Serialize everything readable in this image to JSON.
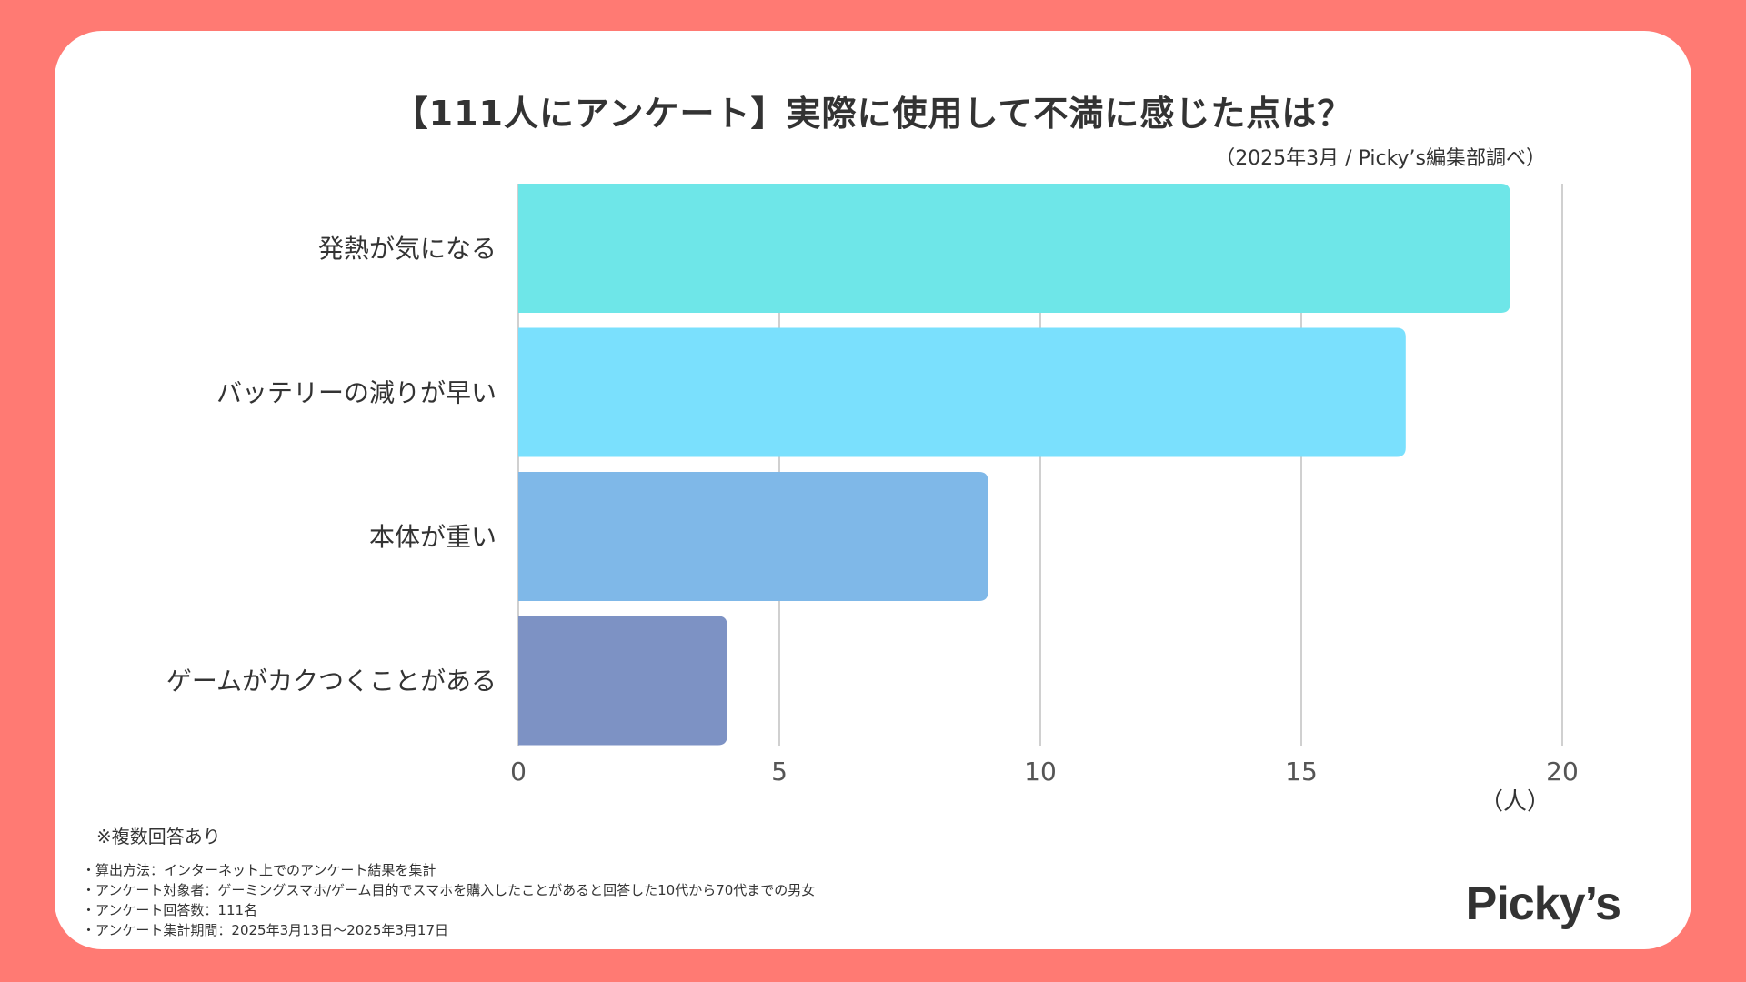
{
  "page": {
    "background_color": "#ff7a73",
    "title": "【111人にアンケート】実際に使用して不満に感じた点は？",
    "subtitle": "（2025年3月 / Picky’s編集部調べ）",
    "note": "※複数回答あり",
    "methods": [
      "・算出方法：インターネット上でのアンケート結果を集計",
      "・アンケート対象者：ゲーミングスマホ/ゲーム目的でスマホを購入したことがあると回答した10代から70代までの男女",
      "・アンケート回答数：111名",
      "・アンケート集計期間：2025年3月13日〜2025年3月17日"
    ],
    "logo": "Picky’s"
  },
  "chart_data": {
    "type": "bar",
    "orientation": "horizontal",
    "title": "【111人にアンケート】実際に使用して不満に感じた点は？",
    "categories": [
      "発熱が気になる",
      "バッテリーの減りが早い",
      "本体が重い",
      "ゲームがカクつくことがある"
    ],
    "values": [
      19,
      17,
      9,
      4
    ],
    "colors": [
      "#6ee6e8",
      "#7ae0fd",
      "#7fb8e8",
      "#7d92c4"
    ],
    "xlim": [
      0,
      20
    ],
    "xticks": [
      "0",
      "5",
      "10",
      "15",
      "20"
    ],
    "xlabel": "（人）",
    "ylabel": "",
    "grid": true
  }
}
